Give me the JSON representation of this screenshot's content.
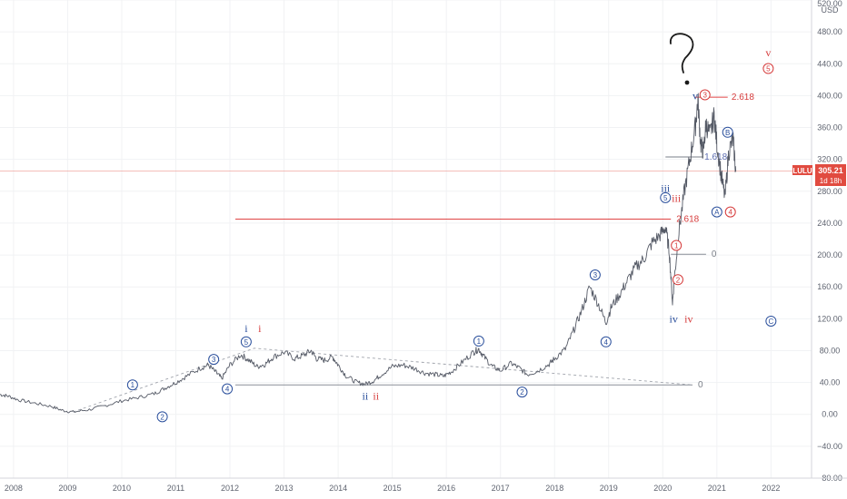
{
  "chart_data": {
    "type": "line",
    "symbol": "LULU",
    "currency": "USD",
    "last_price": "305.21",
    "countdown": "1d 18h",
    "ylim": [
      -80,
      520
    ],
    "y_ticks": [
      520,
      480,
      440,
      400,
      360,
      320,
      280,
      240,
      200,
      160,
      120,
      80,
      40,
      0,
      -40,
      -80
    ],
    "y_tick_labels": [
      "520.00",
      "480.00",
      "440.00",
      "400.00",
      "360.00",
      "320.00",
      "280.00",
      "240.00",
      "200.00",
      "160.00",
      "120.00",
      "80.00",
      "40.00",
      "0.00",
      "−40.00",
      "−80.00"
    ],
    "x_ticks": [
      2008,
      2009,
      2010,
      2011,
      2012,
      2013,
      2014,
      2015,
      2016,
      2017,
      2018,
      2019,
      2020,
      2021,
      2022
    ],
    "xlim": [
      2007.75,
      2022.75
    ],
    "series": [
      {
        "x": [
          2007.75,
          2007.9,
          2008.1,
          2008.4,
          2008.7,
          2008.9,
          2009.1,
          2009.4,
          2009.7,
          2010.0,
          2010.3,
          2010.6,
          2010.8,
          2011.0,
          2011.2,
          2011.45,
          2011.6,
          2011.75,
          2011.85,
          2012.0,
          2012.2,
          2012.35,
          2012.5,
          2012.65,
          2012.8,
          2013.0,
          2013.2,
          2013.35,
          2013.5,
          2013.6,
          2013.75,
          2013.9,
          2014.0,
          2014.15,
          2014.35,
          2014.5,
          2014.65,
          2014.8,
          2015.0,
          2015.2,
          2015.4,
          2015.6,
          2015.8,
          2015.95,
          2016.1,
          2016.3,
          2016.5,
          2016.6,
          2016.7,
          2016.85,
          2017.0,
          2017.2,
          2017.35,
          2017.5,
          2017.7,
          2017.9,
          2018.0,
          2018.2,
          2018.35,
          2018.5,
          2018.65,
          2018.8,
          2018.95,
          2019.05,
          2019.2,
          2019.35,
          2019.5,
          2019.65,
          2019.8,
          2019.95,
          2020.05,
          2020.12,
          2020.18,
          2020.22,
          2020.3,
          2020.4,
          2020.5,
          2020.6,
          2020.65,
          2020.7,
          2020.75,
          2020.8,
          2020.87,
          2020.95,
          2021.0,
          2021.08,
          2021.15,
          2021.22,
          2021.3,
          2021.35
        ],
        "values": [
          25,
          23,
          18,
          14,
          10,
          5,
          3,
          6,
          11,
          17,
          21,
          26,
          33,
          40,
          48,
          58,
          62,
          52,
          45,
          62,
          75,
          68,
          60,
          63,
          72,
          78,
          70,
          74,
          80,
          70,
          68,
          72,
          62,
          48,
          40,
          38,
          42,
          50,
          60,
          62,
          58,
          52,
          50,
          48,
          54,
          66,
          78,
          82,
          72,
          60,
          55,
          64,
          58,
          50,
          55,
          63,
          70,
          82,
          105,
          130,
          160,
          140,
          115,
          135,
          150,
          168,
          185,
          195,
          215,
          225,
          235,
          205,
          140,
          175,
          230,
          280,
          320,
          360,
          395,
          340,
          330,
          365,
          350,
          375,
          340,
          300,
          272,
          330,
          345,
          305
        ]
      }
    ],
    "fib_levels": [
      {
        "label": "2.618",
        "value": 398
      },
      {
        "label": "1.618",
        "value": 323
      },
      {
        "label": "2.618",
        "value": 245
      },
      {
        "label": "0",
        "value": 201
      },
      {
        "label": "0",
        "value": 37
      }
    ],
    "annotations": {
      "question": "?",
      "blue": [
        {
          "text": "1",
          "circled": true,
          "x": 2010.2,
          "y": 37
        },
        {
          "text": "2",
          "circled": true,
          "x": 2010.75,
          "y": -3
        },
        {
          "text": "3",
          "circled": true,
          "x": 2011.7,
          "y": 69
        },
        {
          "text": "4",
          "circled": true,
          "x": 2011.95,
          "y": 32
        },
        {
          "text": "5",
          "circled": true,
          "x": 2012.3,
          "y": 91
        },
        {
          "text": "i",
          "circled": false,
          "x": 2012.3,
          "y": 108
        },
        {
          "text": "ii",
          "circled": false,
          "x": 2014.5,
          "y": 23
        },
        {
          "text": "1",
          "circled": true,
          "x": 2016.6,
          "y": 92
        },
        {
          "text": "2",
          "circled": true,
          "x": 2017.4,
          "y": 28
        },
        {
          "text": "3",
          "circled": true,
          "x": 2018.75,
          "y": 175
        },
        {
          "text": "4",
          "circled": true,
          "x": 2018.95,
          "y": 91
        },
        {
          "text": "5",
          "circled": true,
          "x": 2020.05,
          "y": 272
        },
        {
          "text": "iii",
          "circled": false,
          "x": 2020.05,
          "y": 284
        },
        {
          "text": "iv",
          "circled": false,
          "x": 2020.2,
          "y": 120
        },
        {
          "text": "v",
          "circled": false,
          "x": 2020.6,
          "y": 400
        },
        {
          "text": "A",
          "circled": true,
          "x": 2021.0,
          "y": 254
        },
        {
          "text": "B",
          "circled": true,
          "x": 2021.2,
          "y": 354
        },
        {
          "text": "C",
          "circled": true,
          "x": 2022.0,
          "y": 117
        }
      ],
      "red": [
        {
          "text": "i",
          "circled": false,
          "x": 2012.55,
          "y": 108
        },
        {
          "text": "ii",
          "circled": false,
          "x": 2014.7,
          "y": 23
        },
        {
          "text": "iii",
          "circled": false,
          "x": 2020.25,
          "y": 271
        },
        {
          "text": "1",
          "circled": true,
          "x": 2020.25,
          "y": 212
        },
        {
          "text": "2",
          "circled": true,
          "x": 2020.28,
          "y": 169
        },
        {
          "text": "iv",
          "circled": false,
          "x": 2020.48,
          "y": 120
        },
        {
          "text": "3",
          "circled": true,
          "x": 2020.78,
          "y": 401
        },
        {
          "text": "4",
          "circled": true,
          "x": 2021.25,
          "y": 254
        },
        {
          "text": "5",
          "circled": true,
          "x": 2021.95,
          "y": 434
        },
        {
          "text": "v",
          "circled": false,
          "x": 2021.95,
          "y": 454
        }
      ]
    }
  },
  "colors": {
    "price": "#555a66",
    "wave_blue": "#2a4f9c",
    "wave_red": "#d63b3b",
    "fib_red": "#e04444",
    "fib_gray": "#8a8f98",
    "price_label_bg": "#e14b40"
  }
}
